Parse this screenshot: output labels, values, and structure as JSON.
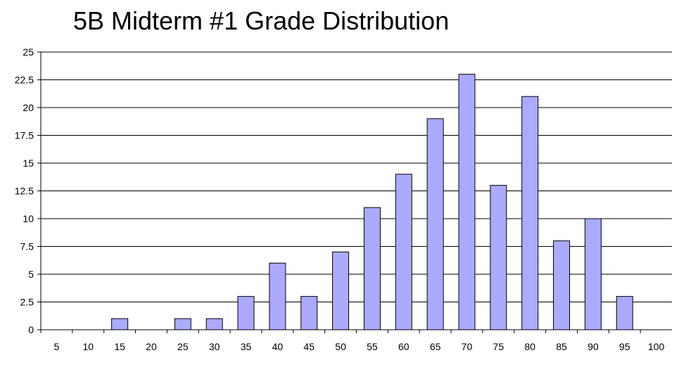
{
  "chart_data": {
    "type": "bar",
    "title": "5B Midterm #1 Grade Distribution",
    "xlabel": "",
    "ylabel": "",
    "categories": [
      "5",
      "10",
      "15",
      "20",
      "25",
      "30",
      "35",
      "40",
      "45",
      "50",
      "55",
      "60",
      "65",
      "70",
      "75",
      "80",
      "85",
      "90",
      "95",
      "100"
    ],
    "values": [
      0,
      0,
      1,
      0,
      1,
      1,
      3,
      6,
      3,
      7,
      11,
      14,
      19,
      23,
      13,
      21,
      8,
      10,
      3,
      0
    ],
    "ylim": [
      0,
      25
    ],
    "yticks": [
      "0",
      "2.5",
      "5",
      "7.5",
      "10",
      "12.5",
      "15",
      "17.5",
      "20",
      "22.5",
      "25"
    ],
    "grid": true,
    "legend": "none",
    "bar_color": "#aaaaff",
    "bar_border_color": "#000000",
    "gridline_color": "#000000"
  }
}
